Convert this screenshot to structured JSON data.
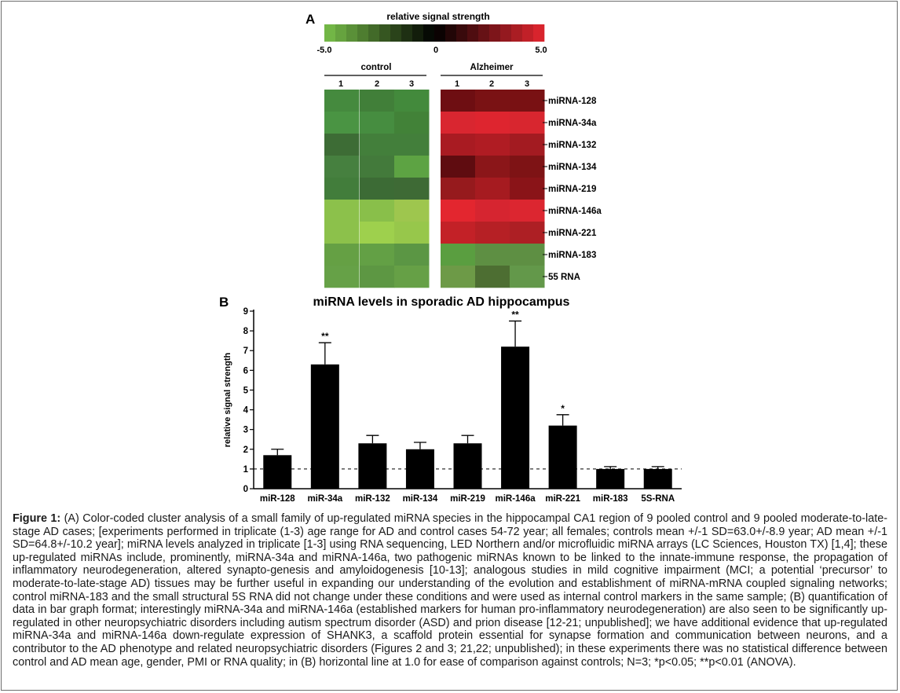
{
  "panel_a": {
    "label": "A",
    "colorbar": {
      "title": "relative signal strength",
      "min_label": "-5.0",
      "mid_label": "0",
      "max_label": "5.0",
      "low_color": "#78c04a",
      "mid_color": "#000000",
      "high_color": "#e3262f"
    },
    "groups": [
      {
        "name": "control",
        "columns": [
          "1",
          "2",
          "3"
        ]
      },
      {
        "name": "Alzheimer",
        "columns": [
          "1",
          "2",
          "3"
        ]
      }
    ],
    "rows": [
      "miRNA-128",
      "miRNA-34a",
      "miRNA-132",
      "miRNA-134",
      "miRNA-219",
      "miRNA-146a",
      "miRNA-221",
      "miRNA-183",
      "55 RNA"
    ],
    "cell_colors": [
      [
        "#458a3e",
        "#417f39",
        "#438a3c",
        "#6e0e12",
        "#7a1214",
        "#791113"
      ],
      [
        "#4a9443",
        "#468d40",
        "#428238",
        "#d92630",
        "#de252f",
        "#d8262f"
      ],
      [
        "#3d6c35",
        "#437f3b",
        "#437f3b",
        "#a91b22",
        "#b01c23",
        "#a31b21"
      ],
      [
        "#46803f",
        "#437a3b",
        "#5da343",
        "#5f0c10",
        "#8b1619",
        "#7e1315"
      ],
      [
        "#427d3b",
        "#3c6b35",
        "#3e6a35",
        "#961a1d",
        "#a61b20",
        "#8a1418"
      ],
      [
        "#8cc14b",
        "#89bf4a",
        "#9ec64e",
        "#e3262f",
        "#d62530",
        "#dc2630"
      ],
      [
        "#8cc14b",
        "#9ed04d",
        "#97c74b",
        "#c32127",
        "#b62025",
        "#ad1f24"
      ],
      [
        "#65a044",
        "#63a045",
        "#5b9644",
        "#5a9e40",
        "#5e8f43",
        "#5e8f43"
      ],
      [
        "#66a147",
        "#5d9743",
        "#66a046",
        "#6d9a47",
        "#4d6e32",
        "#63984a"
      ]
    ]
  },
  "panel_b": {
    "label": "B",
    "chart_data": {
      "type": "bar",
      "title": "miRNA levels in sporadic AD hippocampus",
      "xlabel": "",
      "ylabel": "relative signal strength",
      "ylim": [
        0,
        9
      ],
      "yticks": [
        "0",
        "1",
        "2",
        "3",
        "4",
        "5",
        "6",
        "7",
        "8",
        "9"
      ],
      "categories": [
        "miR-128",
        "miR-34a",
        "miR-132",
        "miR-134",
        "miR-219",
        "miR-146a",
        "miR-221",
        "miR-183",
        "5S-RNA"
      ],
      "values": [
        1.7,
        6.3,
        2.3,
        2.0,
        2.3,
        7.2,
        3.2,
        1.0,
        1.0
      ],
      "error": [
        0.3,
        1.1,
        0.4,
        0.35,
        0.4,
        1.3,
        0.55,
        0.12,
        0.12
      ],
      "significance": [
        "",
        "**",
        "",
        "",
        "",
        "**",
        "*",
        "",
        ""
      ],
      "reference_line": 1.0,
      "bar_color": "#000000",
      "grid": false
    }
  },
  "caption": {
    "label": "Figure 1:",
    "text": " (A) Color-coded cluster analysis of a small family of up-regulated miRNA species in the hippocampal CA1 region of 9 pooled control and 9 pooled moderate-to-late-stage AD cases; [experiments performed in triplicate (1-3) age range for AD and control cases 54-72 year; all females; controls mean +/-1 SD=63.0+/-8.9 year; AD mean +/-1 SD=64.8+/-10.2 year]; miRNA levels analyzed in triplicate [1-3] using RNA sequencing, LED Northern  and/or microfluidic miRNA arrays (LC Sciences, Houston TX) [1,4]; these up-regulated miRNAs include, prominently, miRNA-34a and miRNA-146a, two pathogenic miRNAs known to be linked to the innate-immune response, the propagation of inflammatory neurodegeneration, altered synapto-genesis and amyloidogenesis [10-13]; analogous studies in mild cognitive impairment (MCI; a potential ‘precursor’ to moderate-to-late-stage AD) tissues may be further useful in expanding our understanding of the evolution and establishment of miRNA-mRNA coupled signaling networks; control miRNA-183 and the small structural 5S RNA did not change under these conditions and were used as internal control markers in the same sample; (B) quantification of data in bar graph format; interestingly miRNA-34a and miRNA-146a (established markers for human pro-inflammatory neurodegeneration) are also seen to be significantly up-regulated in other neuropsychiatric disorders including autism spectrum disorder (ASD) and prion disease [12-21; unpublished]; we have additional evidence that up-regulated miRNA-34a and miRNA-146a down-regulate expression of SHANK3, a scaffold protein essential for synapse formation and communication between neurons, and a contributor to the AD phenotype and related neuropsychiatric disorders (Figures 2 and 3; 21,22; unpublished); in these experiments there was no statistical difference between control and AD mean age, gender, PMI or RNA quality; in (B) horizontal line at 1.0 for ease of comparison against controls; N=3; *p<0.05; **p<0.01 (ANOVA)."
  }
}
